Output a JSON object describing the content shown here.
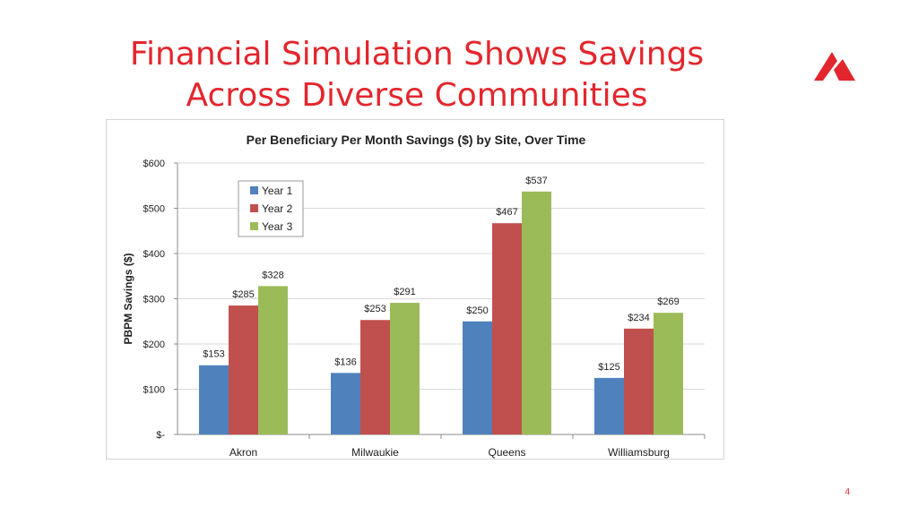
{
  "slide": {
    "title_line1": "Financial Simulation Shows Savings",
    "title_line2": "Across Diverse Communities",
    "page_number": "4"
  },
  "colors": {
    "title": "#e3262d",
    "year1": "#4f81bd",
    "year2": "#c0504d",
    "year3": "#9bbb59"
  },
  "icons": {
    "logo": "red-chevron-logo-icon"
  },
  "chart_data": {
    "type": "bar",
    "title": "Per Beneficiary Per Month Savings ($) by Site, Over Time",
    "xlabel": "",
    "ylabel": "PBPM Savings ($)",
    "categories": [
      "Akron",
      "Milwaukie",
      "Queens",
      "Williamsburg"
    ],
    "series": [
      {
        "name": "Year 1",
        "values": [
          153,
          136,
          250,
          125
        ],
        "labels": [
          "$153",
          "$136",
          "$250",
          "$125"
        ]
      },
      {
        "name": "Year 2",
        "values": [
          285,
          253,
          467,
          234
        ],
        "labels": [
          "$285",
          "$253",
          "$467",
          "$234"
        ]
      },
      {
        "name": "Year 3",
        "values": [
          328,
          291,
          537,
          269
        ],
        "labels": [
          "$328",
          "$291",
          "$537",
          "$269"
        ]
      }
    ],
    "ylim": [
      0,
      600
    ],
    "yticks": [
      0,
      100,
      200,
      300,
      400,
      500,
      600
    ],
    "ytick_labels": [
      "$-",
      "$100",
      "$200",
      "$300",
      "$400",
      "$500",
      "$600"
    ],
    "grid": true,
    "legend_position": "top-left"
  }
}
